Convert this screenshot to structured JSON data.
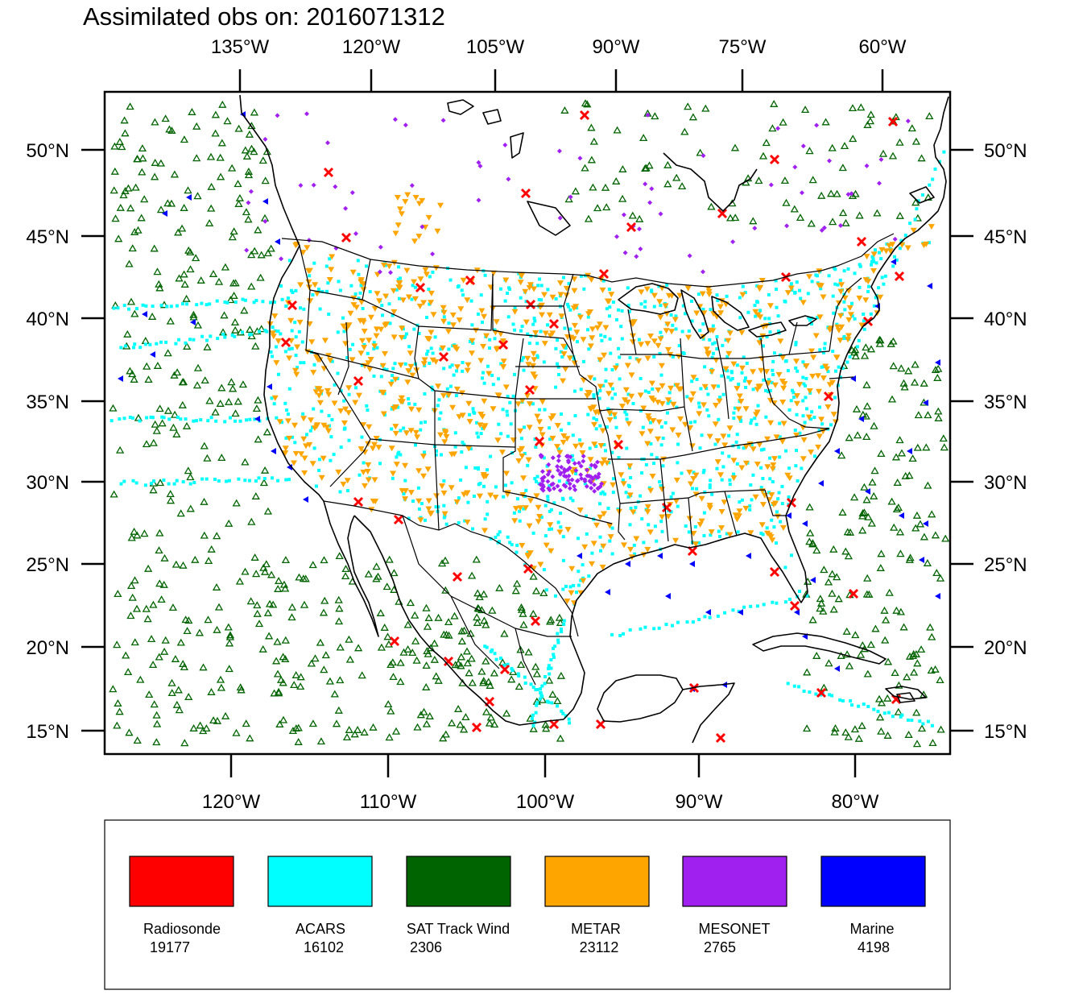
{
  "title": "Assimilated obs on: 2016071312",
  "top_lon_labels": [
    "135°W",
    "120°W",
    "105°W",
    "90°W",
    "75°W",
    "60°W"
  ],
  "bottom_lon_labels": [
    "120°W",
    "110°W",
    "100°W",
    "90°W",
    "80°W"
  ],
  "lat_labels": [
    "50°N",
    "45°N",
    "40°N",
    "35°N",
    "30°N",
    "25°N",
    "20°N",
    "15°N"
  ],
  "legend": [
    {
      "name": "Radiosonde",
      "count": "19177",
      "color": "#ff0000",
      "marker": "x"
    },
    {
      "name": "ACARS",
      "count": "16102",
      "color": "#00ffff",
      "marker": "square-dot"
    },
    {
      "name": "SAT Track Wind",
      "count": "2306",
      "color": "#006400",
      "marker": "triangle-up-outline"
    },
    {
      "name": "METAR",
      "count": "23112",
      "color": "#ffa500",
      "marker": "triangle-down"
    },
    {
      "name": "MESONET",
      "count": "2765",
      "color": "#a020f0",
      "marker": "diamond"
    },
    {
      "name": "Marine",
      "count": "4198",
      "color": "#0000ff",
      "marker": "triangle-left"
    }
  ],
  "map_colors": {
    "coast": "#000000",
    "background": "#ffffff"
  }
}
